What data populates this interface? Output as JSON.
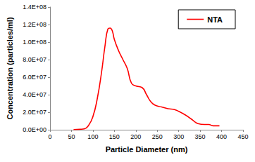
{
  "chart_data": {
    "type": "line",
    "x_label": "Particle Diameter (nm)",
    "y_label": "Concentration (particles/ml)",
    "xlim": [
      0,
      450
    ],
    "xticks": [
      0,
      50,
      100,
      150,
      200,
      250,
      300,
      350,
      400,
      450
    ],
    "ylim": [
      0,
      140000000
    ],
    "yticks": [
      {
        "value": 0,
        "label": "0.0E+00"
      },
      {
        "value": 20000000,
        "label": "2.0E+07"
      },
      {
        "value": 40000000,
        "label": "4.0E+07"
      },
      {
        "value": 60000000,
        "label": "6.0E+07"
      },
      {
        "value": 80000000,
        "label": "8.0E+07"
      },
      {
        "value": 100000000,
        "label": "1.0E+08"
      },
      {
        "value": 120000000,
        "label": "1.2E+08"
      },
      {
        "value": 140000000,
        "label": "1.4E+08"
      }
    ],
    "grid": false,
    "legend": "upper right",
    "series": [
      {
        "name": "NTA",
        "color": "#ff0000",
        "marker": "none",
        "line_style": "solid",
        "x": [
          55,
          70,
          80,
          90,
          100,
          110,
          120,
          128,
          135,
          140,
          145,
          150,
          160,
          170,
          180,
          190,
          200,
          215,
          225,
          235,
          245,
          260,
          275,
          290,
          300,
          315,
          330,
          345,
          360,
          370,
          380,
          395
        ],
        "values": [
          200000,
          500000,
          1000000,
          5000000,
          15000000,
          35000000,
          65000000,
          95000000,
          115000000,
          116000000,
          113000000,
          103000000,
          90000000,
          80000000,
          70000000,
          53000000,
          50000000,
          48000000,
          40000000,
          32000000,
          28000000,
          26000000,
          24000000,
          23000000,
          21000000,
          17000000,
          12000000,
          7000000,
          6000000,
          6000000,
          4500000,
          4500000
        ]
      }
    ]
  }
}
